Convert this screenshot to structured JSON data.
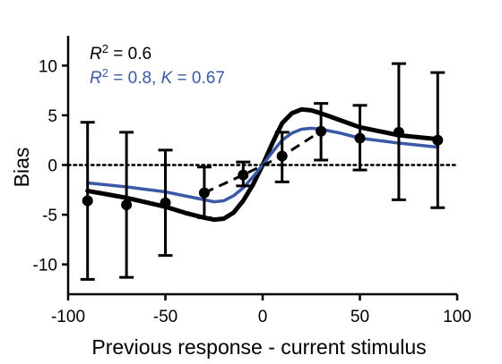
{
  "chart_data": {
    "type": "line",
    "xlabel": "Previous response - current stimulus",
    "ylabel": "Bias",
    "xlim": [
      -100,
      100
    ],
    "ylim": [
      -13,
      13
    ],
    "xticks": [
      -100,
      -50,
      0,
      50,
      100
    ],
    "yticks": [
      -10,
      -5,
      0,
      5,
      10
    ],
    "xtick_labels": [
      "-100",
      "-50",
      "0",
      "50",
      "100"
    ],
    "ytick_labels": [
      "-10",
      "-5",
      "0",
      "5",
      "10"
    ],
    "grid": false,
    "reference_line": {
      "y": 0,
      "style": "dotted"
    },
    "annotations": [
      {
        "color": "#000000",
        "parts": [
          {
            "t": "R",
            "italic": true
          },
          {
            "t": "2",
            "sup": true
          },
          {
            "t": " = 0.6"
          }
        ]
      },
      {
        "color": "#3a5aa8",
        "parts": [
          {
            "t": "R",
            "italic": true
          },
          {
            "t": "2",
            "sup": true
          },
          {
            "t": " = 0.8, "
          },
          {
            "t": "K",
            "italic": true
          },
          {
            "t": " = 0.67"
          }
        ]
      }
    ],
    "points": {
      "x": [
        -90,
        -70,
        -50,
        -30,
        -10,
        10,
        30,
        50,
        70,
        90
      ],
      "y": [
        -3.6,
        -4.0,
        -3.8,
        -2.8,
        -1.0,
        0.9,
        3.4,
        2.7,
        3.3,
        2.5
      ],
      "upper": [
        4.3,
        3.3,
        1.5,
        -0.2,
        0.3,
        3.3,
        6.2,
        6.0,
        10.2,
        9.3
      ],
      "lower": [
        -11.5,
        -11.3,
        -9.1,
        -5.3,
        -2.1,
        -1.7,
        0.5,
        -0.5,
        -3.5,
        -4.3
      ],
      "color": "#000000",
      "connect_style": "dashed"
    },
    "series": [
      {
        "color": "#000000",
        "x": [
          -90,
          -70,
          -50,
          -40,
          -30,
          -25,
          -20,
          -15,
          -10,
          -5,
          0,
          5,
          10,
          15,
          20,
          25,
          30,
          40,
          50,
          70,
          90
        ],
        "y": [
          -2.6,
          -3.3,
          -4.2,
          -4.8,
          -5.3,
          -5.5,
          -5.4,
          -4.8,
          -3.6,
          -2.0,
          0,
          2.2,
          4.2,
          5.2,
          5.6,
          5.5,
          5.2,
          4.5,
          3.8,
          3.0,
          2.6
        ]
      },
      {
        "color": "#3a5aa8",
        "x": [
          -90,
          -70,
          -50,
          -40,
          -30,
          -25,
          -20,
          -15,
          -10,
          -5,
          0,
          5,
          10,
          15,
          20,
          25,
          30,
          40,
          50,
          70,
          90
        ],
        "y": [
          -1.8,
          -2.2,
          -2.7,
          -3.1,
          -3.5,
          -3.7,
          -3.6,
          -3.1,
          -2.3,
          -1.2,
          0,
          1.3,
          2.5,
          3.2,
          3.6,
          3.7,
          3.6,
          3.2,
          2.7,
          2.2,
          1.8
        ]
      }
    ]
  }
}
